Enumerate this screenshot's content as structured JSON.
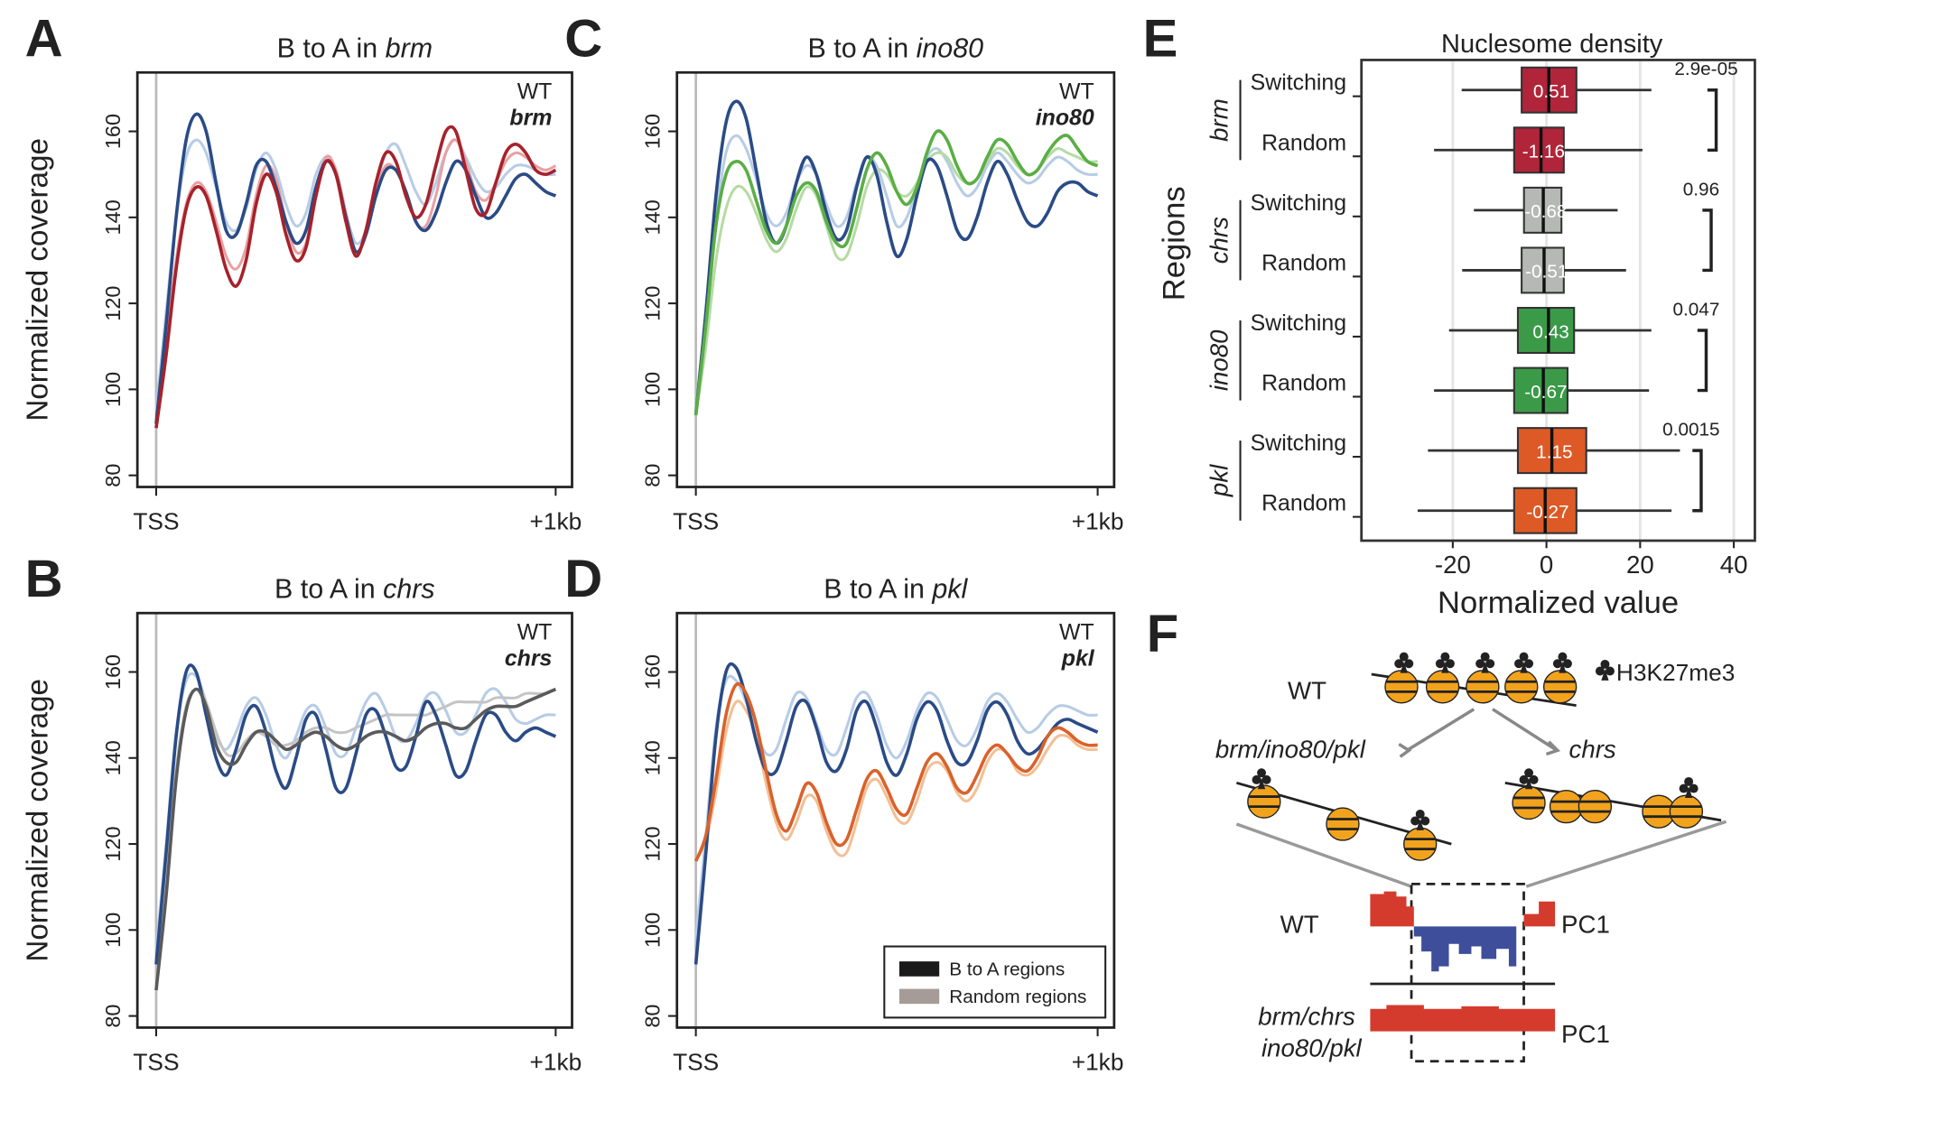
{
  "chart_data": [
    {
      "type": "line",
      "panel": "A",
      "title": "B to A in",
      "title_italic": "brm",
      "ylabel": "Normalized coverage",
      "x": [
        0,
        25,
        50,
        75,
        100,
        125,
        150,
        175,
        200,
        225,
        250,
        275,
        300,
        325,
        350,
        375,
        400,
        425,
        450,
        475,
        500,
        525,
        550,
        575,
        600,
        625,
        650,
        675,
        700,
        725,
        750,
        775,
        800,
        825,
        850,
        875,
        900,
        925,
        950,
        975,
        1000
      ],
      "series": [
        {
          "name": "WT",
          "color": "#2a4b86",
          "values": [
            92,
            115,
            140,
            158,
            164,
            160,
            148,
            137,
            136,
            143,
            152,
            153,
            147,
            139,
            134,
            137,
            147,
            153,
            150,
            140,
            132,
            136,
            145,
            151,
            151,
            146,
            139,
            137,
            141,
            148,
            153,
            151,
            145,
            140,
            141,
            145,
            149,
            150,
            148,
            146,
            145
          ]
        },
        {
          "name": "brm",
          "color": "#a6222b",
          "values": [
            91,
            108,
            128,
            142,
            147,
            145,
            137,
            128,
            124,
            130,
            143,
            150,
            146,
            136,
            130,
            133,
            145,
            153,
            150,
            139,
            131,
            137,
            148,
            155,
            153,
            145,
            140,
            143,
            152,
            160,
            160,
            151,
            142,
            141,
            148,
            155,
            157,
            155,
            151,
            150,
            151
          ]
        },
        {
          "color": "#b7cce6",
          "values": [
            95,
            118,
            140,
            154,
            158,
            155,
            147,
            139,
            137,
            142,
            151,
            155,
            151,
            143,
            138,
            141,
            150,
            154,
            151,
            141,
            134,
            137,
            147,
            155,
            157,
            152,
            146,
            143,
            148,
            155,
            158,
            154,
            149,
            146,
            147,
            150,
            152,
            152,
            151,
            150,
            150
          ]
        },
        {
          "color": "#e9a0a3",
          "values": [
            91,
            110,
            130,
            143,
            148,
            146,
            139,
            131,
            128,
            133,
            145,
            152,
            149,
            139,
            132,
            134,
            145,
            154,
            151,
            141,
            132,
            136,
            146,
            152,
            151,
            146,
            139,
            138,
            145,
            155,
            158,
            153,
            146,
            144,
            148,
            153,
            155,
            154,
            152,
            151,
            152
          ]
        }
      ],
      "xlim": [
        -47,
        1041
      ],
      "ylim": [
        77.3,
        173.7
      ],
      "xticks": [
        {
          "value": 0,
          "label": "TSS"
        },
        {
          "value": 1000,
          "label": "+1kb"
        }
      ],
      "yticks": [
        80,
        100,
        120,
        140,
        160
      ],
      "vline": 0
    },
    {
      "type": "line",
      "panel": "B",
      "title": "B to A in",
      "title_italic": "chrs",
      "ylabel": "Normalized coverage",
      "x": [
        0,
        25,
        50,
        75,
        100,
        125,
        150,
        175,
        200,
        225,
        250,
        275,
        300,
        325,
        350,
        375,
        400,
        425,
        450,
        475,
        500,
        525,
        550,
        575,
        600,
        625,
        650,
        675,
        700,
        725,
        750,
        775,
        800,
        825,
        850,
        875,
        900,
        925,
        950,
        975,
        1000
      ],
      "series": [
        {
          "name": "WT",
          "color": "#2a4b86",
          "values": [
            92,
            118,
            145,
            160,
            160,
            150,
            140,
            136,
            142,
            150,
            152,
            146,
            137,
            133,
            140,
            149,
            150,
            142,
            133,
            133,
            141,
            150,
            151,
            145,
            138,
            138,
            145,
            153,
            150,
            143,
            136,
            137,
            144,
            150,
            150,
            146,
            144,
            146,
            147,
            146,
            145
          ]
        },
        {
          "name": "chrs",
          "color": "#5a5a5a",
          "values": [
            86,
            108,
            135,
            151,
            156,
            152,
            143,
            139,
            139,
            143,
            146,
            146,
            144,
            142,
            143,
            145,
            146,
            145,
            143,
            142,
            143,
            145,
            146,
            146,
            145,
            144,
            145,
            147,
            148,
            148,
            147,
            147,
            149,
            151,
            152,
            152,
            152,
            153,
            154,
            155,
            156
          ]
        },
        {
          "color": "#b7cce6",
          "values": [
            95,
            120,
            146,
            158,
            159,
            153,
            145,
            142,
            146,
            152,
            154,
            150,
            143,
            140,
            145,
            151,
            152,
            147,
            141,
            141,
            147,
            153,
            155,
            151,
            145,
            144,
            148,
            154,
            155,
            151,
            146,
            146,
            150,
            155,
            156,
            153,
            149,
            148,
            149,
            150,
            150
          ]
        },
        {
          "color": "#c4c4c4",
          "values": [
            87,
            110,
            137,
            152,
            156,
            153,
            146,
            141,
            141,
            144,
            146,
            145,
            143,
            143,
            144,
            146,
            147,
            147,
            146,
            146,
            147,
            148,
            149,
            150,
            150,
            150,
            150,
            150,
            151,
            152,
            153,
            153,
            153,
            153,
            154,
            154,
            154,
            155,
            155,
            155,
            156
          ]
        }
      ],
      "xlim": [
        -47,
        1041
      ],
      "ylim": [
        77.3,
        173.7
      ],
      "xticks": [
        {
          "value": 0,
          "label": "TSS"
        },
        {
          "value": 1000,
          "label": "+1kb"
        }
      ],
      "yticks": [
        80,
        100,
        120,
        140,
        160
      ],
      "vline": 0
    },
    {
      "type": "line",
      "panel": "C",
      "title": "B to A in",
      "title_italic": "ino80",
      "x": [
        0,
        25,
        50,
        75,
        100,
        125,
        150,
        175,
        200,
        225,
        250,
        275,
        300,
        325,
        350,
        375,
        400,
        425,
        450,
        475,
        500,
        525,
        550,
        575,
        600,
        625,
        650,
        675,
        700,
        725,
        750,
        775,
        800,
        825,
        850,
        875,
        900,
        925,
        950,
        975,
        1000
      ],
      "series": [
        {
          "name": "WT",
          "color": "#2a4b86",
          "values": [
            94,
            118,
            145,
            162,
            167,
            163,
            151,
            139,
            134,
            138,
            148,
            154,
            150,
            141,
            135,
            137,
            147,
            154,
            150,
            139,
            131,
            135,
            145,
            153,
            152,
            145,
            137,
            135,
            140,
            148,
            153,
            150,
            144,
            139,
            138,
            141,
            146,
            148,
            148,
            146,
            145
          ]
        },
        {
          "name": "ino80",
          "color": "#5aae45",
          "values": [
            94,
            115,
            138,
            150,
            153,
            151,
            144,
            137,
            134,
            138,
            145,
            148,
            146,
            139,
            134,
            134,
            142,
            151,
            155,
            152,
            146,
            143,
            147,
            155,
            160,
            158,
            152,
            148,
            149,
            154,
            158,
            157,
            153,
            150,
            151,
            155,
            158,
            159,
            156,
            153,
            152
          ]
        },
        {
          "color": "#b7cce6",
          "values": [
            95,
            118,
            140,
            155,
            159,
            156,
            149,
            141,
            138,
            141,
            148,
            152,
            150,
            143,
            138,
            140,
            148,
            154,
            152,
            145,
            138,
            140,
            147,
            154,
            156,
            153,
            148,
            145,
            147,
            152,
            155,
            153,
            150,
            148,
            149,
            152,
            154,
            153,
            151,
            150,
            150
          ]
        },
        {
          "color": "#b5dba3",
          "values": [
            94,
            110,
            130,
            142,
            147,
            146,
            141,
            135,
            132,
            135,
            142,
            147,
            145,
            138,
            131,
            131,
            138,
            147,
            151,
            150,
            146,
            145,
            148,
            153,
            155,
            154,
            150,
            148,
            149,
            153,
            156,
            155,
            152,
            150,
            151,
            154,
            156,
            155,
            154,
            153,
            153
          ]
        }
      ],
      "xlim": [
        -47,
        1041
      ],
      "ylim": [
        77.3,
        173.7
      ],
      "xticks": [
        {
          "value": 0,
          "label": "TSS"
        },
        {
          "value": 1000,
          "label": "+1kb"
        }
      ],
      "yticks": [
        80,
        100,
        120,
        140,
        160
      ],
      "vline": 0
    },
    {
      "type": "line",
      "panel": "D",
      "title": "B to A in",
      "title_italic": "pkl",
      "x": [
        0,
        25,
        50,
        75,
        100,
        125,
        150,
        175,
        200,
        225,
        250,
        275,
        300,
        325,
        350,
        375,
        400,
        425,
        450,
        475,
        500,
        525,
        550,
        575,
        600,
        625,
        650,
        675,
        700,
        725,
        750,
        775,
        800,
        825,
        850,
        875,
        900,
        925,
        950,
        975,
        1000
      ],
      "series": [
        {
          "name": "WT",
          "color": "#2a4b86",
          "values": [
            92,
            118,
            145,
            160,
            161,
            154,
            144,
            137,
            137,
            144,
            152,
            153,
            147,
            139,
            137,
            142,
            151,
            153,
            147,
            139,
            136,
            141,
            149,
            153,
            151,
            144,
            139,
            139,
            144,
            151,
            153,
            150,
            144,
            141,
            142,
            145,
            148,
            149,
            148,
            147,
            146
          ]
        },
        {
          "name": "pkl",
          "color": "#d9622b",
          "values": [
            116,
            122,
            135,
            150,
            157,
            155,
            148,
            137,
            127,
            123,
            128,
            134,
            132,
            125,
            120,
            121,
            128,
            135,
            137,
            133,
            128,
            127,
            133,
            139,
            141,
            138,
            133,
            132,
            136,
            141,
            143,
            141,
            138,
            137,
            140,
            145,
            147,
            146,
            144,
            143,
            143
          ]
        },
        {
          "color": "#b7cce6",
          "values": [
            98,
            122,
            147,
            158,
            158,
            153,
            146,
            141,
            142,
            149,
            155,
            154,
            148,
            142,
            141,
            147,
            154,
            155,
            150,
            143,
            140,
            144,
            151,
            155,
            154,
            149,
            144,
            143,
            147,
            153,
            155,
            153,
            149,
            146,
            147,
            150,
            152,
            152,
            151,
            150,
            150
          ]
        },
        {
          "color": "#f3bf95",
          "values": [
            116,
            121,
            132,
            146,
            153,
            151,
            145,
            134,
            125,
            121,
            125,
            131,
            130,
            123,
            118,
            118,
            125,
            133,
            135,
            131,
            126,
            125,
            130,
            137,
            139,
            137,
            132,
            130,
            133,
            139,
            142,
            141,
            137,
            136,
            138,
            142,
            145,
            145,
            143,
            142,
            142
          ]
        }
      ],
      "legend": [
        {
          "label": "B to A regions",
          "color": "#1a1a1a"
        },
        {
          "label": "Random regions",
          "color": "#a59c97"
        }
      ],
      "xlim": [
        -47,
        1041
      ],
      "ylim": [
        77.3,
        173.7
      ],
      "xticks": [
        {
          "value": 0,
          "label": "TSS"
        },
        {
          "value": 1000,
          "label": "+1kb"
        }
      ],
      "yticks": [
        80,
        100,
        120,
        140,
        160
      ],
      "vline": 0
    },
    {
      "type": "box",
      "panel": "E",
      "title": "Nuclesome density",
      "xlabel": "Normalized value",
      "ylabel": "Regions",
      "groups": [
        {
          "name": "brm",
          "color": "#b0253a",
          "pvalue": "2.9e-05",
          "rows": [
            {
              "name": "Switching",
              "whislo": -18.1,
              "q1": -5.3,
              "med": 0.51,
              "q3": 6.4,
              "whishi": 22.4
            },
            {
              "name": "Random",
              "whislo": -24,
              "q1": -6.9,
              "med": -1.16,
              "q3": 3.7,
              "whishi": 20.5
            }
          ]
        },
        {
          "name": "chrs",
          "color": "#b5b8b5",
          "pvalue": "0.96",
          "rows": [
            {
              "name": "Switching",
              "whislo": -15.5,
              "q1": -4.8,
              "med": -0.68,
              "q3": 3.2,
              "whishi": 15.2
            },
            {
              "name": "Random",
              "whislo": -18,
              "q1": -5.3,
              "med": -0.51,
              "q3": 3.7,
              "whishi": 17
            }
          ]
        },
        {
          "name": "ino80",
          "color": "#3a9a48",
          "pvalue": "0.047",
          "rows": [
            {
              "name": "Switching",
              "whislo": -20.8,
              "q1": -6.1,
              "med": 0.43,
              "q3": 5.9,
              "whishi": 22.4
            },
            {
              "name": "Random",
              "whislo": -24,
              "q1": -6.9,
              "med": -0.67,
              "q3": 4.5,
              "whishi": 21.9
            }
          ]
        },
        {
          "name": "pkl",
          "color": "#dd5a26",
          "pvalue": "0.0015",
          "rows": [
            {
              "name": "Switching",
              "whislo": -25.3,
              "q1": -6.1,
              "med": 1.15,
              "q3": 8.5,
              "whishi": 28.5
            },
            {
              "name": "Random",
              "whislo": -27.5,
              "q1": -6.9,
              "med": -0.27,
              "q3": 6.4,
              "whishi": 26.7
            }
          ]
        }
      ],
      "xlim": [
        -39.5,
        44.5
      ],
      "xticks": [
        -20,
        0,
        20,
        40
      ],
      "grid": true
    }
  ],
  "diagram": {
    "panel": "F",
    "mark": "H3K27me3",
    "wt": "WT",
    "left": "brm/ino80/pkl",
    "right": "chrs",
    "track_wt": "WT",
    "pc1_wt": "PC1",
    "track_mut": [
      "brm/chrs",
      "ino80/pkl"
    ],
    "pc1_mut": "PC1"
  }
}
